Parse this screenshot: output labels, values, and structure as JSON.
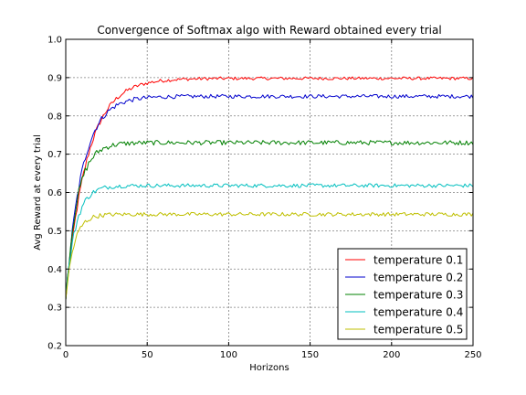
{
  "chart_data": {
    "type": "line",
    "title": "Convergence of Softmax algo with Reward obtained every trial",
    "xlabel": "Horizons",
    "ylabel": "Avg Reward at every trial",
    "xlim": [
      0,
      250
    ],
    "ylim": [
      0.2,
      1.0
    ],
    "xticks": [
      "0",
      "50",
      "100",
      "150",
      "200",
      "250"
    ],
    "yticks": [
      "0.2",
      "0.3",
      "0.4",
      "0.5",
      "0.6",
      "0.7",
      "0.8",
      "0.9",
      "1.0"
    ],
    "grid": true,
    "legend_position": "lower-right",
    "series": [
      {
        "name": "temperature 0.1",
        "color": "#ff0000",
        "start": 0.32,
        "plateau": 0.898,
        "tau": 13,
        "noise": 0.004,
        "x": [
          0,
          10,
          20,
          30,
          40,
          50,
          60,
          80,
          100,
          150,
          200,
          250
        ],
        "values": [
          0.32,
          0.71,
          0.8,
          0.85,
          0.875,
          0.886,
          0.893,
          0.898,
          0.899,
          0.898,
          0.898,
          0.898
        ]
      },
      {
        "name": "temperature 0.2",
        "color": "#0000cc",
        "start": 0.32,
        "plateau": 0.851,
        "tau": 10,
        "noise": 0.005,
        "x": [
          0,
          10,
          20,
          30,
          40,
          50,
          60,
          80,
          100,
          150,
          200,
          250
        ],
        "values": [
          0.32,
          0.72,
          0.81,
          0.838,
          0.847,
          0.85,
          0.851,
          0.851,
          0.851,
          0.851,
          0.851,
          0.851
        ]
      },
      {
        "name": "temperature 0.3",
        "color": "#008000",
        "start": 0.32,
        "plateau": 0.73,
        "tau": 7,
        "noise": 0.006,
        "x": [
          0,
          10,
          20,
          30,
          40,
          50,
          60,
          80,
          100,
          150,
          200,
          250
        ],
        "values": [
          0.32,
          0.65,
          0.715,
          0.727,
          0.73,
          0.73,
          0.73,
          0.73,
          0.73,
          0.73,
          0.73,
          0.73
        ]
      },
      {
        "name": "temperature 0.4",
        "color": "#00bfbf",
        "start": 0.32,
        "plateau": 0.618,
        "tau": 6,
        "noise": 0.005,
        "x": [
          0,
          10,
          20,
          30,
          40,
          50,
          60,
          80,
          100,
          150,
          200,
          250
        ],
        "values": [
          0.32,
          0.58,
          0.613,
          0.617,
          0.618,
          0.618,
          0.618,
          0.618,
          0.618,
          0.618,
          0.618,
          0.618
        ]
      },
      {
        "name": "temperature 0.5",
        "color": "#bfbf00",
        "start": 0.32,
        "plateau": 0.543,
        "tau": 5,
        "noise": 0.005,
        "x": [
          0,
          10,
          20,
          30,
          40,
          50,
          60,
          80,
          100,
          150,
          200,
          250
        ],
        "values": [
          0.32,
          0.52,
          0.54,
          0.543,
          0.543,
          0.543,
          0.543,
          0.543,
          0.543,
          0.543,
          0.543,
          0.543
        ]
      }
    ]
  }
}
